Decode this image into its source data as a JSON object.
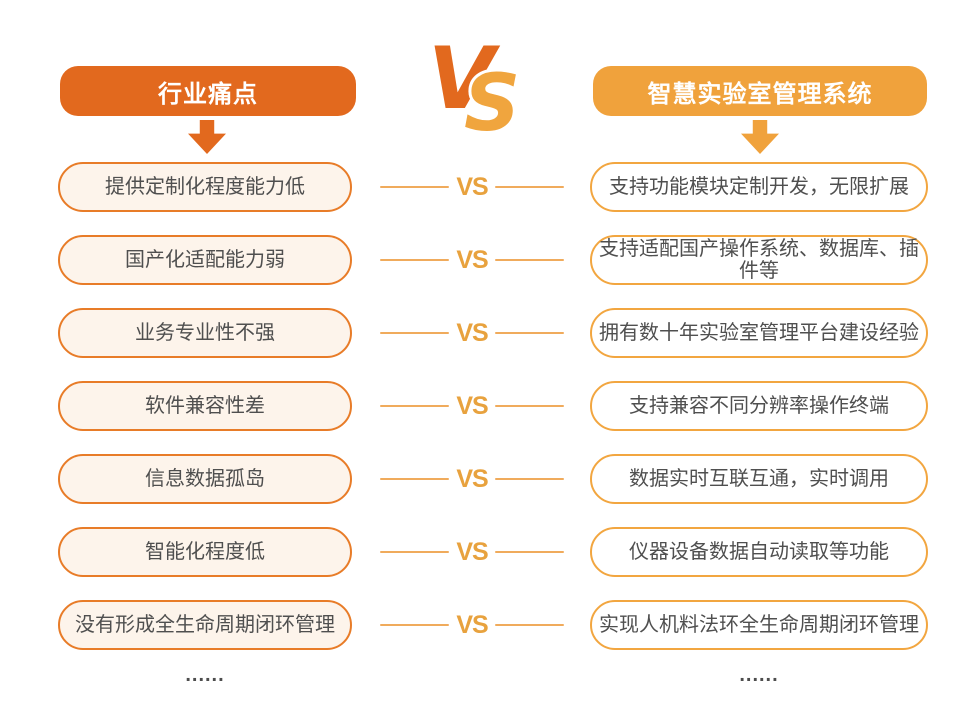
{
  "header": {
    "left_title": "行业痛点",
    "right_title": "智慧实验室管理系统",
    "vs_v": "V",
    "vs_s": "S"
  },
  "comparison": {
    "vs_label": "VS",
    "rows": [
      {
        "pain": "提供定制化程度能力低",
        "solution": "支持功能模块定制开发，无限扩展"
      },
      {
        "pain": "国产化适配能力弱",
        "solution": "支持适配国产操作系统、数据库、插件等"
      },
      {
        "pain": "业务专业性不强",
        "solution": "拥有数十年实验室管理平台建设经验"
      },
      {
        "pain": "软件兼容性差",
        "solution": "支持兼容不同分辨率操作终端"
      },
      {
        "pain": "信息数据孤岛",
        "solution": "数据实时互联互通，实时调用"
      },
      {
        "pain": "智能化程度低",
        "solution": "仪器设备数据自动读取等功能"
      },
      {
        "pain": "没有形成全生命周期闭环管理",
        "solution": "实现人机料法环全生命周期闭环管理"
      }
    ]
  },
  "footer": {
    "left_ellipsis": "......",
    "right_ellipsis": "......"
  },
  "colors": {
    "dark_orange": "#E2691E",
    "light_orange": "#F0A23C",
    "pill_left_border": "#E87C28",
    "pill_left_bg": "#FDF4EB",
    "pill_right_border": "#F2A640",
    "pill_right_bg": "#FFFFFF",
    "vs_mid": "#E8A23E",
    "line": "#F0AB5C",
    "text": "#4F4F4F",
    "ellipsis": "#4D4D4D",
    "vs_v_color": "#E2691E",
    "vs_s_color": "#F0A53E"
  }
}
